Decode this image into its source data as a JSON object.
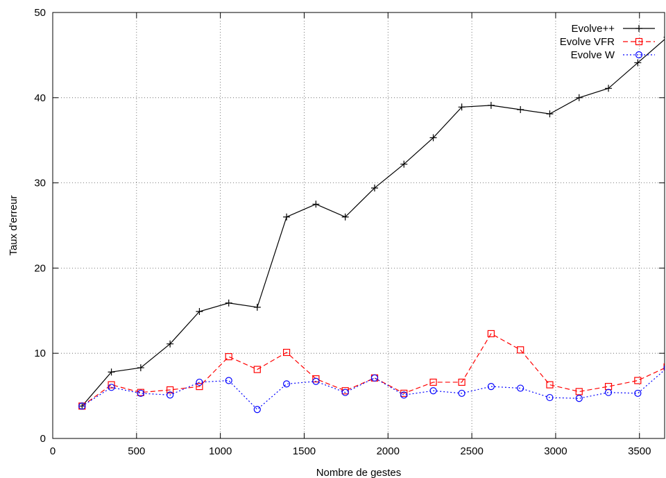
{
  "chart_data": {
    "type": "line",
    "title": "",
    "xlabel": "Nombre de gestes",
    "ylabel": "Taux d'erreur",
    "xlim": [
      0,
      3650
    ],
    "ylim": [
      0,
      50
    ],
    "xticks": [
      0,
      500,
      1000,
      1500,
      2000,
      2500,
      3000,
      3500
    ],
    "yticks": [
      0,
      10,
      20,
      30,
      40,
      50
    ],
    "grid": true,
    "legend_position": "top-right",
    "x": [
      175,
      350,
      525,
      700,
      875,
      1050,
      1220,
      1395,
      1570,
      1745,
      1920,
      2095,
      2270,
      2440,
      2615,
      2790,
      2965,
      3140,
      3315,
      3490,
      3665
    ],
    "series": [
      {
        "name": "Evolve++",
        "color": "#000000",
        "dash": "solid",
        "marker": "plus",
        "values": [
          3.8,
          7.8,
          8.3,
          11.1,
          14.9,
          15.9,
          15.4,
          26.0,
          27.5,
          26.0,
          29.4,
          32.2,
          35.3,
          38.9,
          39.1,
          38.6,
          38.1,
          40.0,
          41.1,
          44.1,
          47.1
        ]
      },
      {
        "name": "Evolve VFR",
        "color": "#ff0000",
        "dash": "dashed",
        "marker": "square",
        "values": [
          3.8,
          6.3,
          5.4,
          5.7,
          6.1,
          9.6,
          8.1,
          10.1,
          7.0,
          5.6,
          7.1,
          5.3,
          6.6,
          6.6,
          12.3,
          10.4,
          6.3,
          5.5,
          6.1,
          6.8,
          8.4
        ]
      },
      {
        "name": "Evolve W",
        "color": "#0000ff",
        "dash": "dotted",
        "marker": "circle",
        "values": [
          3.8,
          6.0,
          5.3,
          5.1,
          6.6,
          6.8,
          3.4,
          6.4,
          6.7,
          5.4,
          7.1,
          5.1,
          5.6,
          5.3,
          6.1,
          5.9,
          4.8,
          4.7,
          5.4,
          5.3,
          8.3
        ]
      }
    ]
  }
}
